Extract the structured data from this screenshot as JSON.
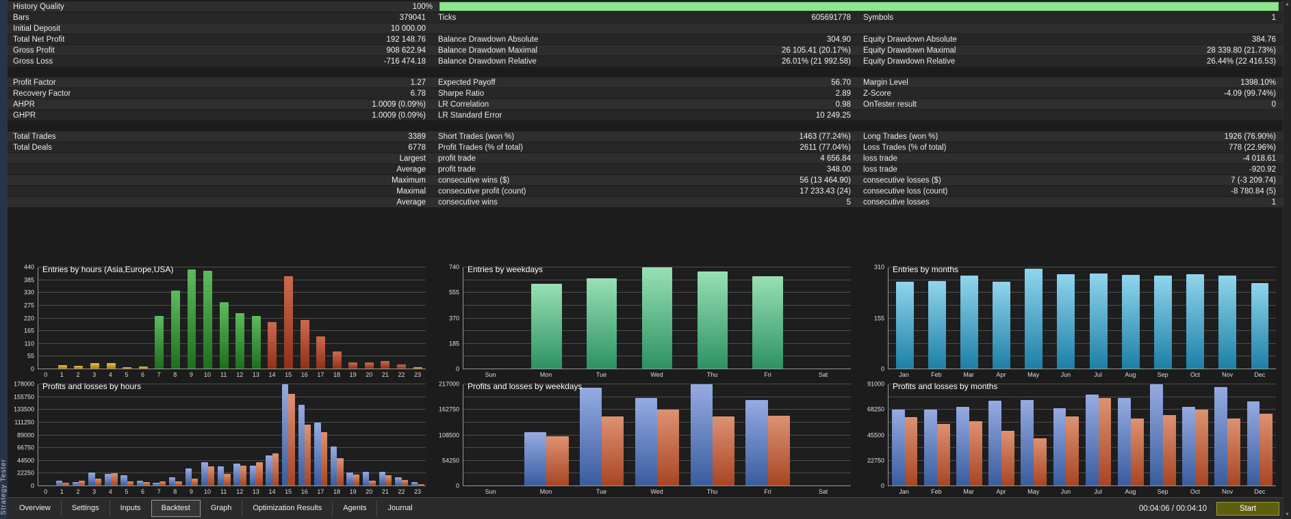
{
  "sidebar_label": "Strategy Tester",
  "icons": {
    "scroll_up": "▲",
    "scroll_down": "▼"
  },
  "colors": {
    "progress_green": "#8de88d",
    "profit_blue": "#3a5c9e",
    "loss_red": "#a84524",
    "start_button": "#5e5e0e"
  },
  "stats": {
    "rows": [
      {
        "type": "progress",
        "left": {
          "label": "History Quality",
          "value": "100%"
        },
        "progress": 100
      },
      {
        "type": "row",
        "cells": [
          {
            "label": "Bars",
            "value": "379041"
          },
          {
            "label": "Ticks",
            "value": "605691778"
          },
          {
            "label": "Symbols",
            "value": "1"
          }
        ]
      },
      {
        "type": "row",
        "cells": [
          {
            "label": "Initial Deposit",
            "value": "10 000.00"
          },
          null,
          null
        ]
      },
      {
        "type": "row",
        "cells": [
          {
            "label": "Total Net Profit",
            "value": "192 148.76"
          },
          {
            "label": "Balance Drawdown Absolute",
            "value": "304.90"
          },
          {
            "label": "Equity Drawdown Absolute",
            "value": "384.76"
          }
        ]
      },
      {
        "type": "row",
        "cells": [
          {
            "label": "Gross Profit",
            "value": "908 622.94"
          },
          {
            "label": "Balance Drawdown Maximal",
            "value": "26 105.41 (20.17%)"
          },
          {
            "label": "Equity Drawdown Maximal",
            "value": "28 339.80 (21.73%)"
          }
        ]
      },
      {
        "type": "row",
        "cells": [
          {
            "label": "Gross Loss",
            "value": "-716 474.18"
          },
          {
            "label": "Balance Drawdown Relative",
            "value": "26.01% (21 992.58)"
          },
          {
            "label": "Equity Drawdown Relative",
            "value": "26.44% (22 416.53)"
          }
        ]
      },
      {
        "type": "gap"
      },
      {
        "type": "row",
        "cells": [
          {
            "label": "Profit Factor",
            "value": "1.27"
          },
          {
            "label": "Expected Payoff",
            "value": "56.70"
          },
          {
            "label": "Margin Level",
            "value": "1398.10%"
          }
        ]
      },
      {
        "type": "row",
        "cells": [
          {
            "label": "Recovery Factor",
            "value": "6.78"
          },
          {
            "label": "Sharpe Ratio",
            "value": "2.89"
          },
          {
            "label": "Z-Score",
            "value": "-4.09 (99.74%)"
          }
        ]
      },
      {
        "type": "row",
        "cells": [
          {
            "label": "AHPR",
            "value": "1.0009 (0.09%)"
          },
          {
            "label": "LR Correlation",
            "value": "0.98"
          },
          {
            "label": "OnTester result",
            "value": "0"
          }
        ]
      },
      {
        "type": "row",
        "cells": [
          {
            "label": "GHPR",
            "value": "1.0009 (0.09%)"
          },
          {
            "label": "LR Standard Error",
            "value": "10 249.25"
          },
          null
        ]
      },
      {
        "type": "gap"
      },
      {
        "type": "row",
        "cells": [
          {
            "label": "Total Trades",
            "value": "3389"
          },
          {
            "label": "Short Trades (won %)",
            "value": "1463 (77.24%)"
          },
          {
            "label": "Long Trades (won %)",
            "value": "1926 (76.90%)"
          }
        ]
      },
      {
        "type": "row",
        "cells": [
          {
            "label": "Total Deals",
            "value": "6778"
          },
          {
            "label": "Profit Trades (% of total)",
            "value": "2611 (77.04%)"
          },
          {
            "label": "Loss Trades (% of total)",
            "value": "778 (22.96%)"
          }
        ]
      },
      {
        "type": "row",
        "cells": [
          {
            "label": "",
            "value": "Largest"
          },
          {
            "label": "profit trade",
            "value": "4 656.84"
          },
          {
            "label": "loss trade",
            "value": "-4 018.61"
          }
        ]
      },
      {
        "type": "row",
        "cells": [
          {
            "label": "",
            "value": "Average"
          },
          {
            "label": "profit trade",
            "value": "348.00"
          },
          {
            "label": "loss trade",
            "value": "-920.92"
          }
        ]
      },
      {
        "type": "row",
        "cells": [
          {
            "label": "",
            "value": "Maximum"
          },
          {
            "label": "consecutive wins ($)",
            "value": "56 (13 464.90)"
          },
          {
            "label": "consecutive losses ($)",
            "value": "7 (-3 209.74)"
          }
        ]
      },
      {
        "type": "row",
        "cells": [
          {
            "label": "",
            "value": "Maximal"
          },
          {
            "label": "consecutive profit (count)",
            "value": "17 233.43 (24)"
          },
          {
            "label": "consecutive loss (count)",
            "value": "-8 780.84 (5)"
          }
        ]
      },
      {
        "type": "row",
        "cells": [
          {
            "label": "",
            "value": "Average"
          },
          {
            "label": "consecutive wins",
            "value": "5"
          },
          {
            "label": "consecutive losses",
            "value": "1"
          }
        ]
      }
    ]
  },
  "chart_data": [
    {
      "type": "bar",
      "title": "Entries by hours (Asia,Europe,USA)",
      "categories": [
        "0",
        "1",
        "2",
        "3",
        "4",
        "5",
        "6",
        "7",
        "8",
        "9",
        "10",
        "11",
        "12",
        "13",
        "14",
        "15",
        "16",
        "17",
        "18",
        "19",
        "20",
        "21",
        "22",
        "23"
      ],
      "values": [
        0,
        15,
        12,
        25,
        24,
        7,
        8,
        228,
        338,
        432,
        426,
        287,
        240,
        230,
        203,
        400,
        210,
        140,
        75,
        28,
        27,
        32,
        18,
        5
      ],
      "colors": [
        "amber",
        "amber",
        "amber",
        "amber",
        "amber",
        "amber",
        "amber",
        "green",
        "green",
        "green",
        "green",
        "green",
        "green",
        "green",
        "red",
        "red",
        "red",
        "red",
        "red",
        "red",
        "red",
        "red",
        "red",
        "amber"
      ],
      "ylim": [
        0,
        440
      ],
      "divisions": 8,
      "yticks": [
        [
          0,
          "0"
        ],
        [
          1,
          "55"
        ],
        [
          2,
          "110"
        ],
        [
          3,
          "165"
        ],
        [
          4,
          "220"
        ],
        [
          5,
          "275"
        ],
        [
          6,
          "330"
        ],
        [
          7,
          "385"
        ],
        [
          8,
          "440"
        ]
      ]
    },
    {
      "type": "bar",
      "title": "Entries by weekdays",
      "categories": [
        "Sun",
        "Mon",
        "Tue",
        "Wed",
        "Thu",
        "Fri",
        "Sat"
      ],
      "values": [
        0,
        620,
        660,
        740,
        710,
        675,
        0
      ],
      "bar_color": "mint",
      "ylim": [
        0,
        740
      ],
      "divisions": 8,
      "yticks": [
        [
          0,
          "0"
        ],
        [
          2,
          "185"
        ],
        [
          4,
          "370"
        ],
        [
          6,
          "555"
        ],
        [
          8,
          "740"
        ]
      ]
    },
    {
      "type": "bar",
      "title": "Entries by months",
      "categories": [
        "Jan",
        "Feb",
        "Mar",
        "Apr",
        "May",
        "Jun",
        "Jul",
        "Aug",
        "Sep",
        "Oct",
        "Nov",
        "Dec"
      ],
      "values": [
        267,
        269,
        284,
        267,
        306,
        289,
        292,
        287,
        285,
        290,
        285,
        262
      ],
      "bar_color": "teal",
      "ylim": [
        0,
        310
      ],
      "divisions": 8,
      "yticks": [
        [
          0,
          "0"
        ],
        [
          4,
          "155"
        ],
        [
          8,
          "310"
        ]
      ]
    },
    {
      "type": "bar",
      "title": "Profits and losses by hours",
      "categories": [
        "0",
        "1",
        "2",
        "3",
        "4",
        "5",
        "6",
        "7",
        "8",
        "9",
        "10",
        "11",
        "12",
        "13",
        "14",
        "15",
        "16",
        "17",
        "18",
        "19",
        "20",
        "21",
        "22",
        "23"
      ],
      "series": [
        {
          "name": "profit",
          "values": [
            0,
            8500,
            6000,
            22500,
            21000,
            18000,
            8500,
            5000,
            14000,
            30000,
            41500,
            34000,
            38000,
            35000,
            52500,
            178000,
            142500,
            111000,
            68500,
            22500,
            24500,
            24500,
            15000,
            6000
          ]
        },
        {
          "name": "loss",
          "values": [
            0,
            5000,
            9000,
            11500,
            22000,
            7000,
            6000,
            7500,
            7000,
            12500,
            33500,
            20500,
            35000,
            40500,
            57000,
            161000,
            107000,
            93500,
            48500,
            19000,
            8500,
            18000,
            10000,
            2000
          ]
        }
      ],
      "ylim": [
        0,
        178000
      ],
      "divisions": 8,
      "yticks": [
        [
          0,
          "0"
        ],
        [
          1,
          "22250"
        ],
        [
          2,
          "44500"
        ],
        [
          3,
          "66750"
        ],
        [
          4,
          "89000"
        ],
        [
          5,
          "111250"
        ],
        [
          6,
          "133500"
        ],
        [
          7,
          "155750"
        ],
        [
          8,
          "178000"
        ]
      ]
    },
    {
      "type": "bar",
      "title": "Profits and losses by weekdays",
      "categories": [
        "Sun",
        "Mon",
        "Tue",
        "Wed",
        "Thu",
        "Fri",
        "Sat"
      ],
      "series": [
        {
          "name": "profit",
          "values": [
            0,
            114000,
            210000,
            187000,
            217000,
            183000,
            0
          ]
        },
        {
          "name": "loss",
          "values": [
            0,
            105000,
            148000,
            163000,
            148000,
            149000,
            0
          ]
        }
      ],
      "ylim": [
        0,
        217000
      ],
      "divisions": 8,
      "yticks": [
        [
          0,
          "0"
        ],
        [
          2,
          "54250"
        ],
        [
          4,
          "108500"
        ],
        [
          6,
          "162750"
        ],
        [
          8,
          "217000"
        ]
      ]
    },
    {
      "type": "bar",
      "title": "Profits and losses by months",
      "categories": [
        "Jan",
        "Feb",
        "Mar",
        "Apr",
        "May",
        "Jun",
        "Jul",
        "Aug",
        "Sep",
        "Oct",
        "Nov",
        "Dec"
      ],
      "series": [
        {
          "name": "profit",
          "values": [
            68250,
            68250,
            70500,
            76500,
            77000,
            69500,
            81500,
            79000,
            91000,
            70500,
            88500,
            75500
          ]
        },
        {
          "name": "loss",
          "values": [
            61500,
            55500,
            57500,
            49500,
            42500,
            62000,
            78500,
            60500,
            63500,
            68250,
            60000,
            64500
          ]
        }
      ],
      "ylim": [
        0,
        91000
      ],
      "divisions": 8,
      "yticks": [
        [
          0,
          "0"
        ],
        [
          2,
          "22750"
        ],
        [
          4,
          "45500"
        ],
        [
          6,
          "68250"
        ],
        [
          8,
          "91000"
        ]
      ]
    }
  ],
  "footer": {
    "tabs": [
      {
        "label": "Overview",
        "active": false
      },
      {
        "label": "Settings",
        "active": false
      },
      {
        "label": "Inputs",
        "active": false
      },
      {
        "label": "Backtest",
        "active": true
      },
      {
        "label": "Graph",
        "active": false
      },
      {
        "label": "Optimization Results",
        "active": false
      },
      {
        "label": "Agents",
        "active": false
      },
      {
        "label": "Journal",
        "active": false
      }
    ],
    "time": "00:04:06 / 00:04:10",
    "start_label": "Start"
  }
}
